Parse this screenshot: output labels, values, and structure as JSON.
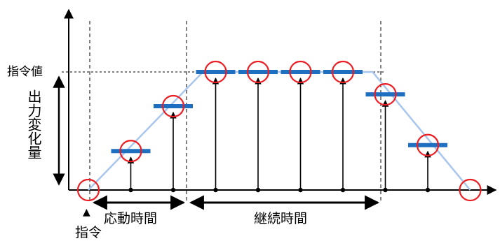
{
  "labels": {
    "command_value": "指令値",
    "output_change": "出力変化量",
    "response_time": "応動時間",
    "duration": "継続時間",
    "command": "指令",
    "command_marker": "▲"
  },
  "colors": {
    "ramp_line": "#a9c6ee",
    "level_bar": "#1f6fc0",
    "sample_circle": "#ee1d23",
    "axis": "#000000"
  },
  "samples": [
    {
      "t": 0.0,
      "level": 0.0,
      "bar": false
    },
    {
      "t": 1.0,
      "level": 0.33,
      "bar": true
    },
    {
      "t": 2.0,
      "level": 0.71,
      "bar": true
    },
    {
      "t": 3.0,
      "level": 1.0,
      "bar": true
    },
    {
      "t": 4.0,
      "level": 1.0,
      "bar": true
    },
    {
      "t": 5.0,
      "level": 1.0,
      "bar": true
    },
    {
      "t": 6.0,
      "level": 1.0,
      "bar": true
    },
    {
      "t": 7.0,
      "level": 0.81,
      "bar": true
    },
    {
      "t": 8.0,
      "level": 0.38,
      "bar": true
    },
    {
      "t": 9.0,
      "level": 0.0,
      "bar": false
    }
  ],
  "ramp_path": [
    {
      "t": 0.0,
      "level": 0.0
    },
    {
      "t": 2.7,
      "level": 1.0
    },
    {
      "t": 6.7,
      "level": 1.0
    },
    {
      "t": 9.0,
      "level": 0.0
    }
  ]
}
